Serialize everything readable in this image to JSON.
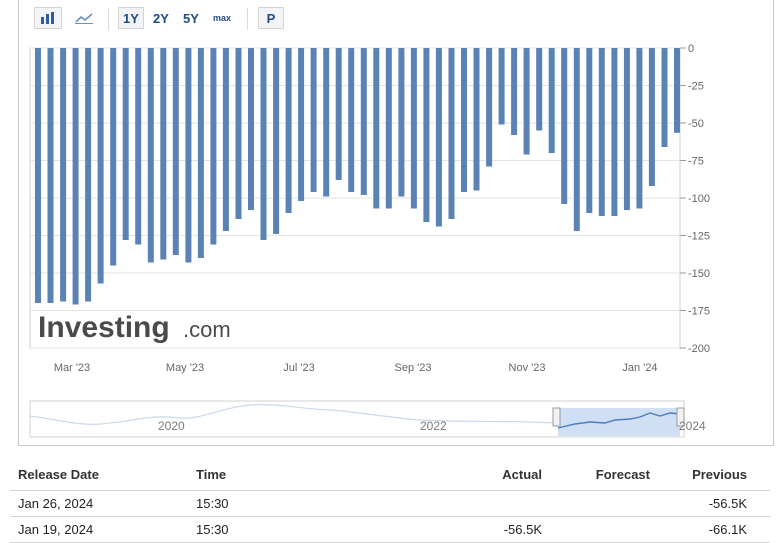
{
  "toolbar": {
    "chart_bar_icon": "bar-chart-icon",
    "chart_line_icon": "line-chart-icon",
    "ranges": [
      "1Y",
      "2Y",
      "5Y",
      "max"
    ],
    "active_range": "1Y",
    "p_label": "P"
  },
  "watermark": {
    "brand": "Investing",
    "suffix": ".com"
  },
  "colors": {
    "bar": "#5b82b5",
    "navigator_fill": "#cfe0f5",
    "navigator_line": "#4a7cc0"
  },
  "chart_data": {
    "type": "bar",
    "ylim": [
      -200,
      0
    ],
    "yticks": [
      0,
      -25,
      -50,
      -75,
      -100,
      -125,
      -150,
      -175,
      -200
    ],
    "xtick_labels": [
      "Mar '23",
      "May '23",
      "Jul '23",
      "Sep '23",
      "Nov '23",
      "Jan '24"
    ],
    "values": [
      -170,
      -170,
      -169,
      -171,
      -169,
      -157,
      -145,
      -128,
      -131,
      -143,
      -141,
      -138,
      -143,
      -140,
      -131,
      -122,
      -114,
      -108,
      -128,
      -124,
      -110,
      -102,
      -96,
      -99,
      -88,
      -96,
      -98,
      -107,
      -107,
      -99,
      -107,
      -116,
      -119,
      -114,
      -96,
      -95,
      -79,
      -51,
      -58,
      -71,
      -55,
      -70,
      -104,
      -122,
      -110,
      -112,
      -112,
      -108,
      -107,
      -92,
      -66,
      -56.5
    ],
    "navigator_labels": [
      "2020",
      "2022",
      "2024"
    ],
    "grid": true
  },
  "table": {
    "headers": [
      "Release Date",
      "Time",
      "Actual",
      "Forecast",
      "Previous"
    ],
    "rows": [
      {
        "date": "Jan 26, 2024",
        "time": "15:30",
        "actual": "",
        "forecast": "",
        "previous": "-56.5K"
      },
      {
        "date": "Jan 19, 2024",
        "time": "15:30",
        "actual": "-56.5K",
        "forecast": "",
        "previous": "-66.1K"
      }
    ]
  }
}
